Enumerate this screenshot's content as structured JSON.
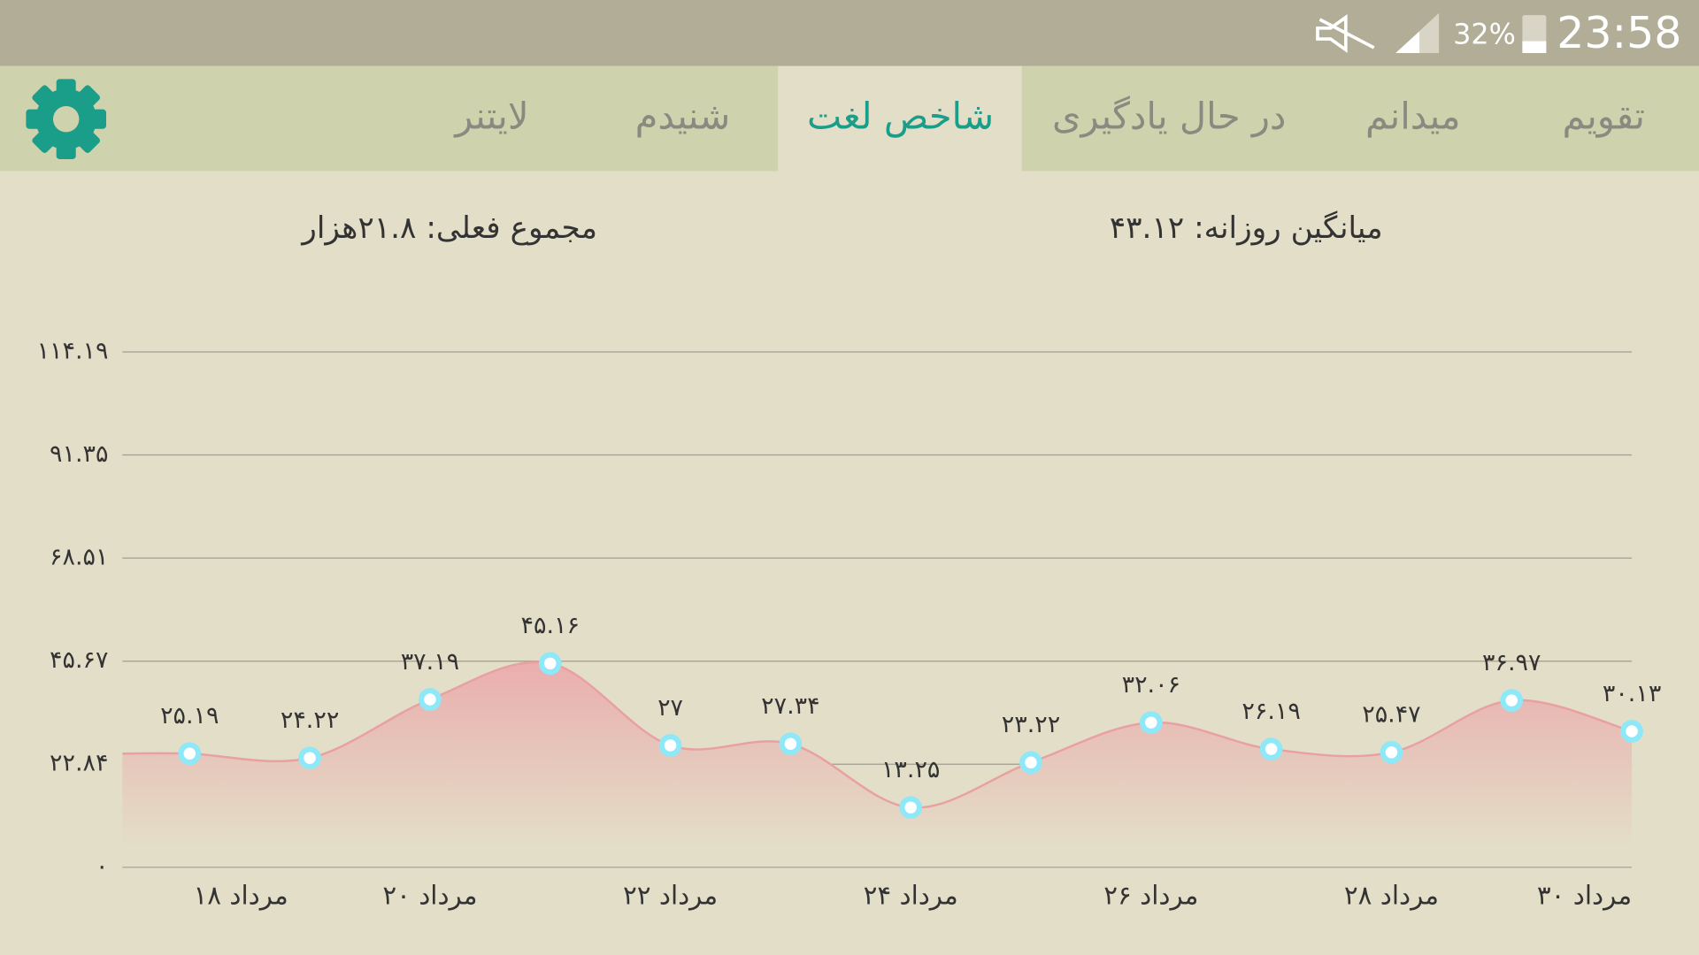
{
  "status_bar": {
    "battery": "32%",
    "time": "23:58"
  },
  "tabs": [
    "تقویم",
    "میدانم",
    "در حال یادگیری",
    "شاخص لغت",
    "شنیدم",
    "لایتنر"
  ],
  "stats": {
    "daily_average": "میانگین روزانه: ۴۳.۱۲",
    "current_total": "مجموع فعلی: ۲۱.۸هزار"
  },
  "chart_data": {
    "type": "line",
    "categories": [
      "۱۸ مرداد",
      null,
      "۲۰ مرداد",
      null,
      "۲۲ مرداد",
      null,
      "۲۴ مرداد",
      null,
      "۲۶ مرداد",
      null,
      "۲۸ مرداد",
      null,
      "۳۰ مرداد"
    ],
    "series": [
      {
        "color": "#e8a0a0",
        "values": [
          25.19,
          24.22,
          37.19,
          45.16,
          27,
          27.34,
          13.25,
          23.22,
          32.06,
          26.19,
          25.47,
          36.97,
          30.13
        ],
        "value_labels": [
          "۲۵.۱۹",
          "۲۴.۲۲",
          "۳۷.۱۹",
          "۴۵.۱۶",
          "۲۷",
          "۲۷.۳۴",
          "۱۳.۲۵",
          "۲۳.۲۲",
          "۳۲.۰۶",
          "۲۶.۱۹",
          "۲۵.۴۷",
          "۳۶.۹۷",
          "۳۰.۱۳"
        ]
      }
    ],
    "ylim": [
      0,
      114.19
    ],
    "yticks": [
      {
        "value": 0,
        "label": "۰"
      },
      {
        "value": 22.84,
        "label": "۲۲.۸۴"
      },
      {
        "value": 45.67,
        "label": "۴۵.۶۷"
      },
      {
        "value": 68.51,
        "label": "۶۸.۵۱"
      },
      {
        "value": 91.35,
        "label": "۹۱.۳۵"
      },
      {
        "value": 114.19,
        "label": "۱۱۴.۱۹"
      }
    ],
    "grid": true
  }
}
